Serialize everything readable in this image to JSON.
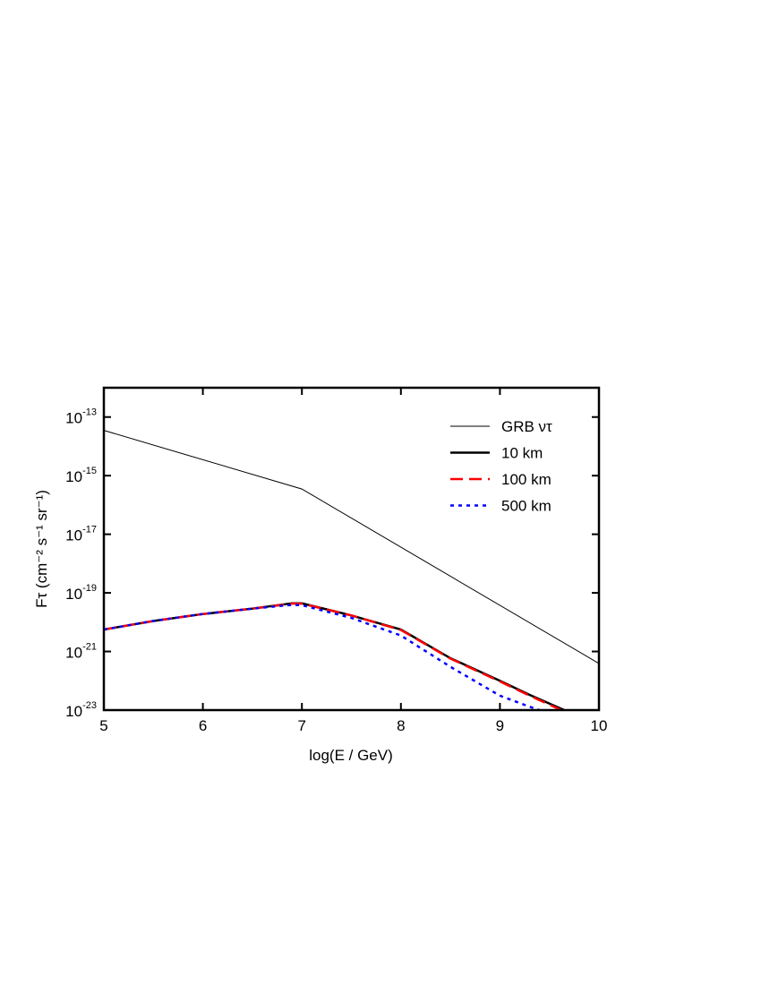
{
  "chart_data": {
    "type": "line",
    "x_label": "log(E / GeV)",
    "y_label": "Fτ  (cm⁻² s⁻¹ sr⁻¹)",
    "xlim": [
      5,
      10
    ],
    "xticks": [
      5,
      6,
      7,
      8,
      9,
      10
    ],
    "ylim": [
      1e-23,
      1e-12
    ],
    "log_y": true,
    "yticks": [
      {
        "value": 1e-23,
        "label": "10-23"
      },
      {
        "value": 1e-21,
        "label": "10-21"
      },
      {
        "value": 1e-19,
        "label": "10-19"
      },
      {
        "value": 1e-17,
        "label": "10-17"
      },
      {
        "value": 1e-15,
        "label": "10-15"
      },
      {
        "value": 1e-13,
        "label": "10-13"
      }
    ],
    "legend": "upper right",
    "series": [
      {
        "name": "GRB ντ",
        "color": "#000000",
        "width": 1,
        "dash": "solid",
        "x": [
          5,
          7,
          10
        ],
        "values": [
          3.5e-14,
          3.5e-16,
          3.9e-22
        ]
      },
      {
        "name": "10 km",
        "color": "#000000",
        "width": 2.5,
        "dash": "solid",
        "x": [
          5,
          5.5,
          6,
          6.5,
          6.9,
          7,
          7.5,
          8,
          8.5,
          9,
          9.3,
          9.65
        ],
        "values": [
          5.6e-21,
          1.1e-20,
          1.9e-20,
          2.9e-20,
          4.4e-20,
          4.4e-20,
          1.7e-20,
          5.6e-21,
          5.9e-22,
          1e-22,
          3.3e-23,
          1e-23
        ]
      },
      {
        "name": "100 km",
        "color": "#ff0000",
        "width": 2.5,
        "dash": "dashed",
        "x": [
          5,
          5.5,
          6,
          6.5,
          6.9,
          7,
          7.5,
          8,
          8.5,
          9,
          9.3,
          9.62
        ],
        "values": [
          5.6e-21,
          1.1e-20,
          1.9e-20,
          2.9e-20,
          4.3e-20,
          4.3e-20,
          1.7e-20,
          5.4e-21,
          5.7e-22,
          9.5e-23,
          3.1e-23,
          1e-23
        ]
      },
      {
        "name": "500 km",
        "color": "#0000ff",
        "width": 2.5,
        "dash": "dotted",
        "x": [
          5,
          5.5,
          6,
          6.5,
          6.9,
          7,
          7.5,
          8,
          8.5,
          9,
          9.3,
          9.4
        ],
        "values": [
          5.6e-21,
          1.1e-20,
          1.9e-20,
          2.9e-20,
          3.9e-20,
          3.8e-20,
          1.4e-20,
          3.5e-21,
          3e-22,
          3.1e-23,
          1.3e-23,
          1e-23
        ]
      }
    ]
  }
}
